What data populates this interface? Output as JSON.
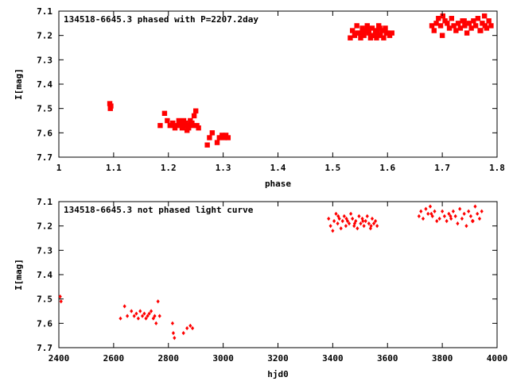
{
  "chart_data": [
    {
      "type": "scatter",
      "title": "134518-6645.3 phased with P=2207.2day",
      "xlabel": "phase",
      "ylabel": "I[mag]",
      "xlim": [
        1,
        1.8
      ],
      "ylim": [
        7.1,
        7.7
      ],
      "y_inverted": true,
      "xticks": [
        "1",
        "1.1",
        "1.2",
        "1.3",
        "1.4",
        "1.5",
        "1.6",
        "1.7",
        "1.8"
      ],
      "yticks": [
        "7.1",
        "7.2",
        "7.3",
        "7.4",
        "7.5",
        "7.6",
        "7.7"
      ],
      "grid": false,
      "marker_color": "#ff0000",
      "series": [
        {
          "x": [
            1.093,
            1.094,
            1.095,
            1.185,
            1.193,
            1.198,
            1.203,
            1.208,
            1.212,
            1.216,
            1.219,
            1.222,
            1.225,
            1.228,
            1.231,
            1.234,
            1.237,
            1.24,
            1.244,
            1.247,
            1.25,
            1.252,
            1.255,
            1.237,
            1.243,
            1.228,
            1.271,
            1.275,
            1.28,
            1.289,
            1.293,
            1.298,
            1.302,
            1.305,
            1.309,
            1.532,
            1.536,
            1.54,
            1.544,
            1.548,
            1.551,
            1.554,
            1.557,
            1.56,
            1.563,
            1.566,
            1.569,
            1.572,
            1.575,
            1.578,
            1.581,
            1.584,
            1.587,
            1.59,
            1.593,
            1.596,
            1.6,
            1.604,
            1.608,
            1.556,
            1.571,
            1.586,
            1.545,
            1.565,
            1.58,
            1.598,
            1.681,
            1.685,
            1.689,
            1.693,
            1.697,
            1.701,
            1.705,
            1.709,
            1.713,
            1.717,
            1.721,
            1.725,
            1.729,
            1.733,
            1.737,
            1.741,
            1.745,
            1.749,
            1.753,
            1.757,
            1.761,
            1.765,
            1.769,
            1.773,
            1.777,
            1.781,
            1.785,
            1.789,
            1.7,
            1.74,
            1.77,
            1.778
          ]
        }
      ]
    },
    {
      "type": "scatter",
      "title": "134518-6645.3 not phased light curve",
      "xlabel": "hjd0",
      "ylabel": "I[mag]",
      "xlim": [
        2400,
        4000
      ],
      "ylim": [
        7.1,
        7.7
      ],
      "y_inverted": true,
      "xticks": [
        "2400",
        "2600",
        "2800",
        "3000",
        "3200",
        "3400",
        "3600",
        "3800",
        "4000"
      ],
      "yticks": [
        "7.1",
        "7.2",
        "7.3",
        "7.4",
        "7.5",
        "7.6",
        "7.7"
      ],
      "grid": false,
      "marker_color": "#ff0000",
      "series": [
        {
          "x": [
            2405,
            2408,
            2625,
            2640,
            2650,
            2665,
            2675,
            2683,
            2690,
            2697,
            2705,
            2712,
            2718,
            2724,
            2730,
            2737,
            2745,
            2750,
            2755,
            2762,
            2768,
            2815,
            2818,
            2822,
            2855,
            2868,
            2880,
            2888,
            3385,
            3392,
            3400,
            3405,
            3412,
            3418,
            3424,
            3430,
            3436,
            3442,
            3448,
            3454,
            3460,
            3466,
            3472,
            3478,
            3484,
            3490,
            3496,
            3502,
            3508,
            3514,
            3520,
            3526,
            3532,
            3538,
            3544,
            3550,
            3556,
            3562,
            3420,
            3450,
            3480,
            3510,
            3540,
            3715,
            3722,
            3730,
            3740,
            3748,
            3756,
            3764,
            3772,
            3780,
            3790,
            3800,
            3808,
            3816,
            3824,
            3832,
            3840,
            3848,
            3856,
            3864,
            3872,
            3880,
            3888,
            3896,
            3904,
            3912,
            3920,
            3928,
            3936,
            3944,
            3760,
            3830,
            3910
          ],
          "y": [
            7.49,
            7.51,
            7.58,
            7.53,
            7.57,
            7.55,
            7.57,
            7.56,
            7.58,
            7.55,
            7.57,
            7.56,
            7.58,
            7.57,
            7.56,
            7.55,
            7.58,
            7.57,
            7.6,
            7.51,
            7.57,
            7.6,
            7.64,
            7.66,
            7.64,
            7.62,
            7.61,
            7.62,
            7.17,
            7.2,
            7.22,
            7.18,
            7.15,
            7.19,
            7.17,
            7.21,
            7.18,
            7.16,
            7.2,
            7.18,
            7.19,
            7.15,
            7.17,
            7.2,
            7.18,
            7.21,
            7.16,
            7.19,
            7.17,
            7.2,
            7.18,
            7.16,
            7.19,
            7.21,
            7.17,
            7.19,
            7.18,
            7.2,
            7.16,
            7.17,
            7.19,
            7.18,
            7.2,
            7.16,
            7.14,
            7.17,
            7.13,
            7.15,
            7.12,
            7.16,
            7.14,
            7.18,
            7.17,
            7.14,
            7.16,
            7.18,
            7.15,
            7.17,
            7.14,
            7.16,
            7.19,
            7.13,
            7.17,
            7.15,
            7.2,
            7.14,
            7.16,
            7.18,
            7.12,
            7.15,
            7.17,
            7.14,
            7.15,
            7.16,
            7.18
          ]
        }
      ]
    }
  ]
}
